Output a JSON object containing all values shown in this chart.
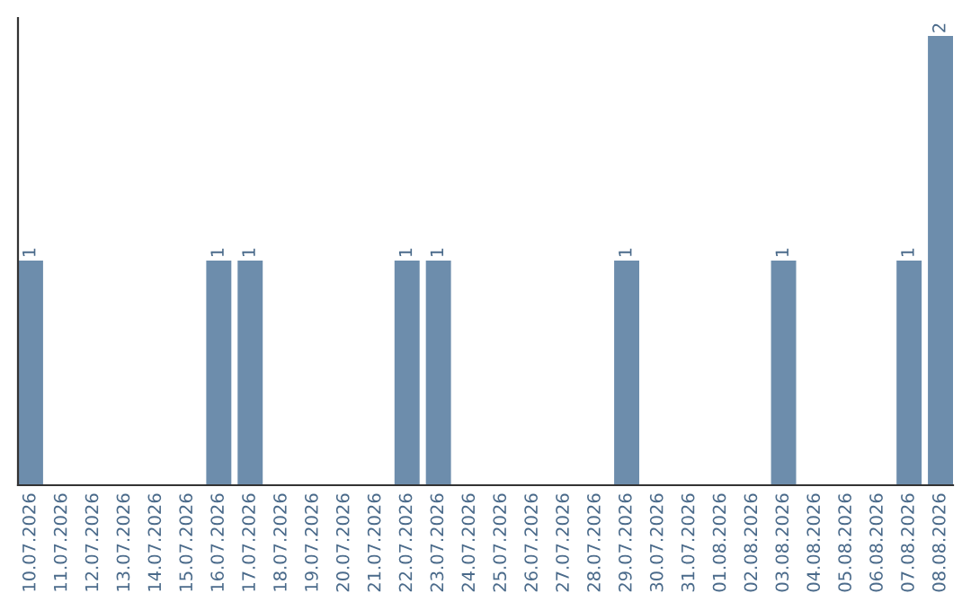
{
  "chart_data": {
    "type": "bar",
    "categories": [
      "10.07.2026",
      "11.07.2026",
      "12.07.2026",
      "13.07.2026",
      "14.07.2026",
      "15.07.2026",
      "16.07.2026",
      "17.07.2026",
      "18.07.2026",
      "19.07.2026",
      "20.07.2026",
      "21.07.2026",
      "22.07.2026",
      "23.07.2026",
      "24.07.2026",
      "25.07.2026",
      "26.07.2026",
      "27.07.2026",
      "28.07.2026",
      "29.07.2026",
      "30.07.2026",
      "31.07.2026",
      "01.08.2026",
      "02.08.2026",
      "03.08.2026",
      "04.08.2026",
      "05.08.2026",
      "06.08.2026",
      "07.08.2026",
      "08.08.2026"
    ],
    "values": [
      1,
      0,
      0,
      0,
      0,
      0,
      1,
      1,
      0,
      0,
      0,
      0,
      1,
      1,
      0,
      0,
      0,
      0,
      0,
      1,
      0,
      0,
      0,
      0,
      1,
      0,
      0,
      0,
      1,
      2
    ],
    "color": "#6d8dac",
    "value_labels": [
      "1",
      null,
      null,
      null,
      null,
      null,
      "1",
      "1",
      null,
      null,
      null,
      null,
      "1",
      "1",
      null,
      null,
      null,
      null,
      null,
      "1",
      null,
      null,
      null,
      null,
      "1",
      null,
      null,
      null,
      "1",
      "2"
    ],
    "tick_labels": "x",
    "grid": false,
    "legend": false
  }
}
